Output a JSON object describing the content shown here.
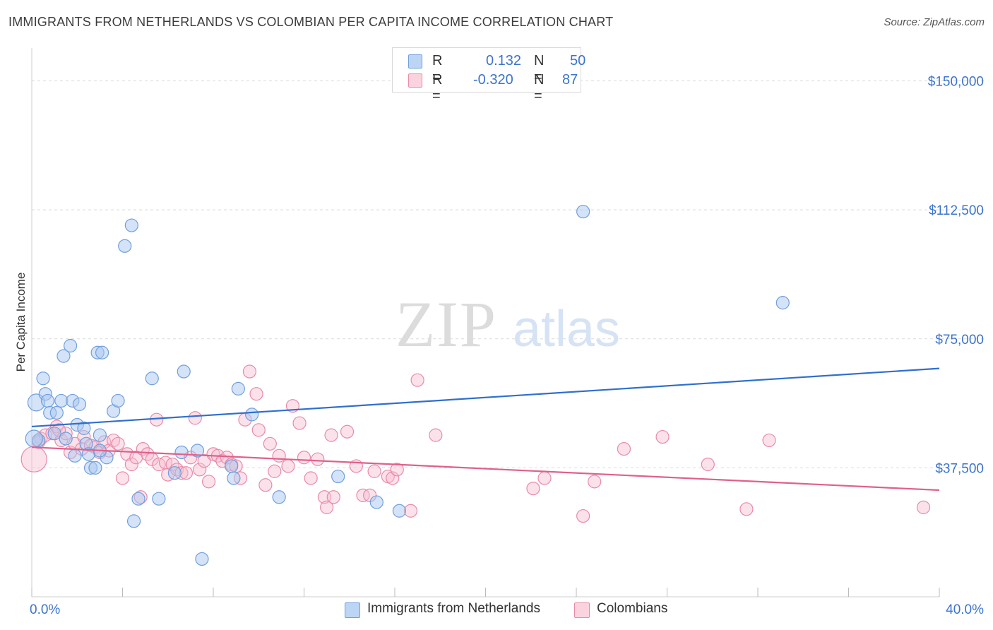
{
  "title": "IMMIGRANTS FROM NETHERLANDS VS COLOMBIAN PER CAPITA INCOME CORRELATION CHART",
  "source": "Source: ZipAtlas.com",
  "watermark": {
    "zip": "ZIP",
    "atlas": "atlas"
  },
  "legend": {
    "r_label": "R =",
    "n_label": "N =",
    "rows": [
      {
        "r": "0.132",
        "n": "50"
      },
      {
        "r": "-0.320",
        "n": "87"
      }
    ]
  },
  "colors": {
    "blue_fill": "#a9c8f0",
    "blue_stroke": "#6f9fde",
    "blue_line": "#2f6fcf",
    "pink_fill": "#f6bfd0",
    "pink_stroke": "#e88aa9",
    "pink_line": "#e0608b",
    "axis_label": "#3b74cc",
    "grid": "#d9d9d9"
  },
  "chart_data": {
    "type": "scatter",
    "title": "IMMIGRANTS FROM NETHERLANDS VS COLOMBIAN PER CAPITA INCOME CORRELATION CHART",
    "xlabel": "",
    "ylabel": "Per Capita Income",
    "xlim": [
      0,
      40
    ],
    "ylim": [
      0,
      157500
    ],
    "x_tick_labels": [
      "0.0%",
      "40.0%"
    ],
    "y_ticks": [
      37500,
      75000,
      112500,
      150000
    ],
    "y_tick_labels": [
      "$37,500",
      "$75,000",
      "$112,500",
      "$150,000"
    ],
    "grid": true,
    "legend_position": "top-center",
    "series": [
      {
        "name": "Immigrants from Netherlands",
        "color": "#a9c8f0",
        "trend": {
          "x": [
            0,
            40
          ],
          "y": [
            49500,
            66400
          ]
        },
        "points": [
          [
            0.2,
            56500
          ],
          [
            0.3,
            45500
          ],
          [
            0.5,
            63500
          ],
          [
            0.6,
            59000
          ],
          [
            0.7,
            57000
          ],
          [
            0.8,
            53500
          ],
          [
            1.0,
            47500
          ],
          [
            1.1,
            53500
          ],
          [
            1.3,
            57000
          ],
          [
            1.4,
            70000
          ],
          [
            1.5,
            46000
          ],
          [
            1.7,
            73000
          ],
          [
            1.8,
            57000
          ],
          [
            1.9,
            41000
          ],
          [
            2.0,
            50000
          ],
          [
            2.1,
            56000
          ],
          [
            2.3,
            49000
          ],
          [
            2.4,
            44500
          ],
          [
            2.5,
            41500
          ],
          [
            2.6,
            37500
          ],
          [
            2.8,
            37500
          ],
          [
            2.9,
            71000
          ],
          [
            3.0,
            47000
          ],
          [
            3.1,
            71000
          ],
          [
            3.3,
            40500
          ],
          [
            3.6,
            54000
          ],
          [
            3.8,
            57000
          ],
          [
            4.1,
            102000
          ],
          [
            4.4,
            108000
          ],
          [
            4.5,
            22000
          ],
          [
            4.7,
            28500
          ],
          [
            5.3,
            63500
          ],
          [
            5.6,
            28500
          ],
          [
            6.6,
            42000
          ],
          [
            6.7,
            65500
          ],
          [
            6.3,
            36000
          ],
          [
            7.3,
            42500
          ],
          [
            7.5,
            11000
          ],
          [
            8.9,
            34500
          ],
          [
            8.8,
            38000
          ],
          [
            9.1,
            60500
          ],
          [
            9.7,
            53000
          ],
          [
            10.9,
            29000
          ],
          [
            13.5,
            35000
          ],
          [
            15.2,
            27500
          ],
          [
            16.2,
            25000
          ],
          [
            24.3,
            112000
          ],
          [
            33.1,
            85500
          ],
          [
            0.1,
            46000
          ],
          [
            3.0,
            42500
          ]
        ]
      },
      {
        "name": "Colombians",
        "color": "#f6bfd0",
        "trend": {
          "x": [
            0,
            40
          ],
          "y": [
            43500,
            31000
          ]
        },
        "points": [
          [
            0.1,
            40000
          ],
          [
            0.4,
            46000
          ],
          [
            0.6,
            47000
          ],
          [
            0.9,
            47500
          ],
          [
            1.1,
            49500
          ],
          [
            1.3,
            45500
          ],
          [
            1.5,
            47500
          ],
          [
            1.7,
            42000
          ],
          [
            1.9,
            44500
          ],
          [
            2.2,
            43000
          ],
          [
            2.3,
            46500
          ],
          [
            2.6,
            44000
          ],
          [
            2.8,
            43500
          ],
          [
            3.0,
            42000
          ],
          [
            3.2,
            45000
          ],
          [
            3.4,
            42500
          ],
          [
            3.6,
            45500
          ],
          [
            3.8,
            44500
          ],
          [
            4.0,
            34500
          ],
          [
            4.2,
            41500
          ],
          [
            4.4,
            38500
          ],
          [
            4.6,
            40500
          ],
          [
            4.8,
            29000
          ],
          [
            4.9,
            43000
          ],
          [
            5.1,
            41500
          ],
          [
            5.3,
            40000
          ],
          [
            5.5,
            51500
          ],
          [
            5.6,
            38500
          ],
          [
            5.9,
            39000
          ],
          [
            6.0,
            35500
          ],
          [
            6.2,
            38500
          ],
          [
            6.4,
            37000
          ],
          [
            6.6,
            36000
          ],
          [
            6.8,
            36000
          ],
          [
            7.0,
            40500
          ],
          [
            7.2,
            52000
          ],
          [
            7.4,
            37000
          ],
          [
            7.6,
            39500
          ],
          [
            7.8,
            33500
          ],
          [
            8.0,
            41500
          ],
          [
            8.2,
            41000
          ],
          [
            8.4,
            39500
          ],
          [
            8.6,
            40500
          ],
          [
            8.8,
            38500
          ],
          [
            9.0,
            38000
          ],
          [
            9.2,
            34500
          ],
          [
            9.4,
            51500
          ],
          [
            9.6,
            65500
          ],
          [
            9.9,
            59000
          ],
          [
            10.0,
            48500
          ],
          [
            10.3,
            32500
          ],
          [
            10.5,
            44500
          ],
          [
            10.7,
            36500
          ],
          [
            10.9,
            41000
          ],
          [
            11.3,
            38000
          ],
          [
            11.5,
            55500
          ],
          [
            11.8,
            50500
          ],
          [
            12.0,
            40500
          ],
          [
            12.3,
            34500
          ],
          [
            12.6,
            40000
          ],
          [
            12.9,
            29000
          ],
          [
            13.2,
            47000
          ],
          [
            13.0,
            26000
          ],
          [
            13.3,
            29000
          ],
          [
            13.9,
            48000
          ],
          [
            14.3,
            38000
          ],
          [
            14.6,
            29500
          ],
          [
            14.9,
            29500
          ],
          [
            15.1,
            36500
          ],
          [
            15.7,
            35000
          ],
          [
            15.9,
            34500
          ],
          [
            16.1,
            37000
          ],
          [
            16.7,
            25000
          ],
          [
            17.0,
            63000
          ],
          [
            17.8,
            47000
          ],
          [
            22.1,
            31500
          ],
          [
            22.6,
            34500
          ],
          [
            24.3,
            23500
          ],
          [
            24.8,
            33500
          ],
          [
            26.1,
            43000
          ],
          [
            27.8,
            46500
          ],
          [
            29.8,
            38500
          ],
          [
            31.5,
            25500
          ],
          [
            32.5,
            45500
          ],
          [
            39.3,
            26000
          ],
          [
            0.3,
            45000
          ],
          [
            1.2,
            48500
          ]
        ]
      }
    ]
  },
  "bottom_legend": [
    "Immigrants from Netherlands",
    "Colombians"
  ]
}
